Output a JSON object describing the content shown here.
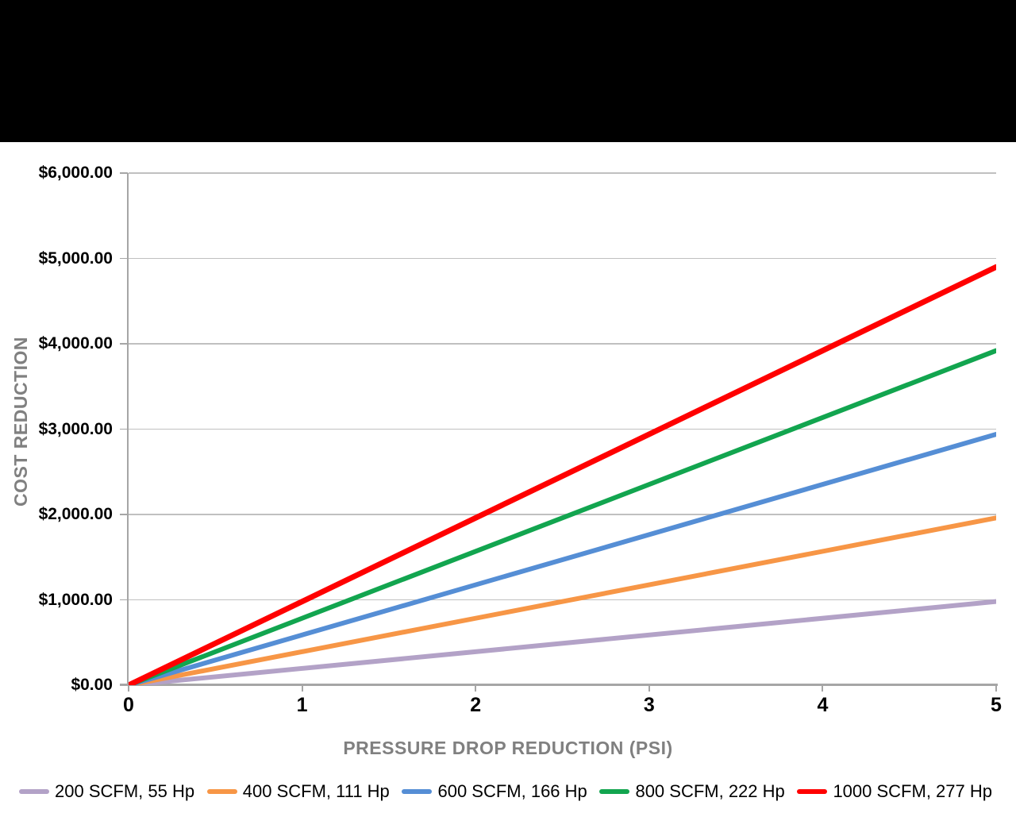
{
  "chart_data": {
    "type": "line",
    "title": "",
    "xlabel": "PRESSURE DROP REDUCTION (PSI)",
    "ylabel": "COST REDUCTION",
    "x_axis": {
      "range": [
        0,
        5
      ],
      "ticks": [
        "0",
        "1",
        "2",
        "3",
        "4",
        "5"
      ]
    },
    "y_axis": {
      "range": [
        0,
        6000
      ],
      "ticks": [
        {
          "value": 0,
          "label": "$0.00"
        },
        {
          "value": 1000,
          "label": "$1,000.00"
        },
        {
          "value": 2000,
          "label": "$2,000.00"
        },
        {
          "value": 3000,
          "label": "$3,000.00"
        },
        {
          "value": 4000,
          "label": "$4,000.00"
        },
        {
          "value": 5000,
          "label": "$5,000.00"
        },
        {
          "value": 6000,
          "label": "$6,000.00"
        }
      ]
    },
    "grid": "horizontal",
    "legend_position": "bottom",
    "series": [
      {
        "name": "200 SCFM, 55 Hp",
        "color": "#b3a2c7",
        "stroke_width": 6,
        "points": [
          [
            0,
            0
          ],
          [
            5,
            980
          ]
        ]
      },
      {
        "name": "400 SCFM, 111 Hp",
        "color": "#f79646",
        "stroke_width": 6,
        "points": [
          [
            0,
            0
          ],
          [
            5,
            1960
          ]
        ]
      },
      {
        "name": "600 SCFM, 166 Hp",
        "color": "#558ed5",
        "stroke_width": 6,
        "points": [
          [
            0,
            0
          ],
          [
            5,
            2940
          ]
        ]
      },
      {
        "name": "800 SCFM, 222 Hp",
        "color": "#12a54f",
        "stroke_width": 6,
        "points": [
          [
            0,
            0
          ],
          [
            5,
            3920
          ]
        ]
      },
      {
        "name": "1000 SCFM, 277 Hp",
        "color": "#ff0000",
        "stroke_width": 7,
        "points": [
          [
            0,
            0
          ],
          [
            5,
            4900
          ]
        ]
      }
    ]
  },
  "colors": {
    "banner": "#000000",
    "background": "#ffffff",
    "gridline": "#c0c0c0",
    "axis_line": "#a6a6a6",
    "tick_label": "#000000",
    "axis_title": "#808080"
  }
}
